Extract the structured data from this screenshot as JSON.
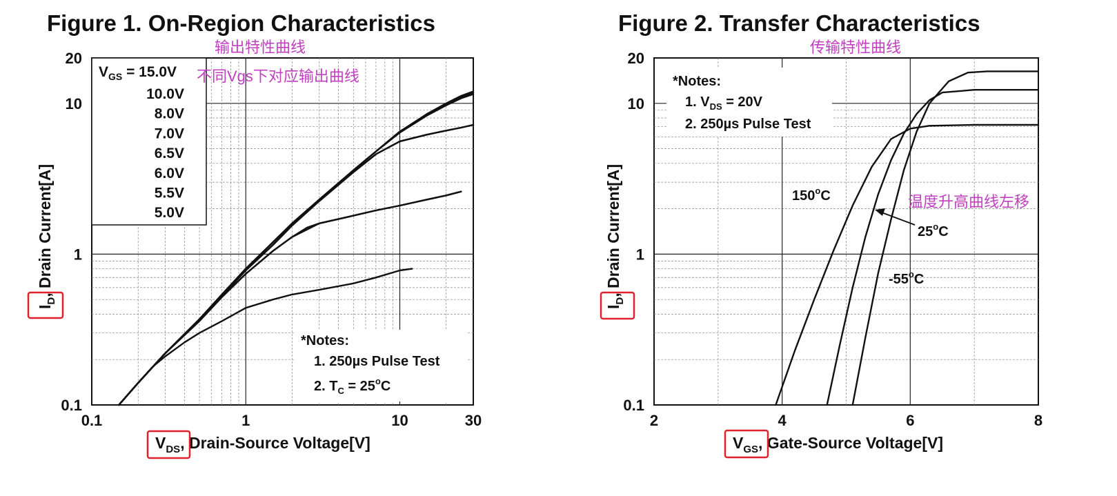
{
  "chart_data": [
    {
      "type": "line",
      "title": "Figure 1. On-Region Characteristics",
      "annotation_cn_title": "输出特性曲线",
      "annotation_cn_legend": "不同Vgs下对应输出曲线",
      "xlabel_sym": "V",
      "xlabel_sub": "DS",
      "xlabel_rest": ", Drain-Source Voltage[V]",
      "ylabel_sym": "I",
      "ylabel_sub": "D",
      "ylabel_rest": ", Drain Current[A]",
      "xscale": "log",
      "yscale": "log",
      "xlim": [
        0.1,
        30
      ],
      "ylim": [
        0.1,
        20
      ],
      "xticks": [
        {
          "v": 0.1,
          "label": "0.1"
        },
        {
          "v": 1,
          "label": "1"
        },
        {
          "v": 10,
          "label": "10"
        },
        {
          "v": 30,
          "label": "30"
        }
      ],
      "yticks": [
        {
          "v": 0.1,
          "label": "0.1"
        },
        {
          "v": 1,
          "label": "1"
        },
        {
          "v": 10,
          "label": "10"
        },
        {
          "v": 20,
          "label": "20"
        }
      ],
      "grid": true,
      "legend": {
        "placement": "top-left",
        "first_sym": "V",
        "first_sub": "GS",
        "first_value": " = 15.0V",
        "entries": [
          "10.0V",
          "8.0V",
          "7.0V",
          "6.5V",
          "6.0V",
          "5.5V",
          "5.0V"
        ]
      },
      "notes": {
        "heading": "*Notes:",
        "line1": "1. 250µs Pulse Test",
        "line2_pre": "2. T",
        "line2_sub": "C",
        "line2_mid": " = 25",
        "line2_sup": "o",
        "line2_post": "C"
      },
      "series": [
        {
          "name": "15.0V",
          "x": [
            0.15,
            0.2,
            0.3,
            0.5,
            0.7,
            1,
            1.5,
            2,
            3,
            5,
            7,
            10,
            15,
            20,
            25,
            30
          ],
          "y": [
            0.1,
            0.14,
            0.22,
            0.37,
            0.54,
            0.8,
            1.2,
            1.6,
            2.3,
            3.6,
            4.8,
            6.5,
            8.5,
            10,
            11.2,
            12
          ]
        },
        {
          "name": "10.0V",
          "x": [
            0.15,
            0.2,
            0.3,
            0.5,
            0.7,
            1,
            1.5,
            2,
            3,
            5,
            7,
            10,
            15,
            20,
            25,
            30
          ],
          "y": [
            0.1,
            0.14,
            0.22,
            0.37,
            0.54,
            0.8,
            1.2,
            1.6,
            2.3,
            3.6,
            4.8,
            6.5,
            8.4,
            9.9,
            11,
            11.8
          ]
        },
        {
          "name": "8.0V",
          "x": [
            0.15,
            0.2,
            0.3,
            0.5,
            0.7,
            1,
            1.5,
            2,
            3,
            5,
            7,
            10,
            15,
            20,
            25,
            30
          ],
          "y": [
            0.1,
            0.14,
            0.22,
            0.37,
            0.54,
            0.8,
            1.2,
            1.6,
            2.3,
            3.6,
            4.8,
            6.4,
            8.3,
            9.7,
            10.8,
            11.5
          ]
        },
        {
          "name": "7.0V",
          "x": [
            0.15,
            0.2,
            0.3,
            0.5,
            0.7,
            1,
            1.5,
            2,
            3,
            5,
            7,
            10,
            15,
            20,
            25,
            30
          ],
          "y": [
            0.1,
            0.14,
            0.22,
            0.37,
            0.53,
            0.78,
            1.15,
            1.55,
            2.25,
            3.5,
            4.6,
            5.6,
            6.2,
            6.6,
            6.9,
            7.2
          ]
        },
        {
          "name": "6.5V",
          "x": [
            0.15,
            0.2,
            0.3,
            0.5,
            0.7,
            1,
            1.5,
            2,
            3,
            5,
            7,
            10,
            15,
            20,
            25,
            30
          ],
          "y": [
            0.1,
            0.14,
            0.22,
            0.37,
            0.53,
            0.78,
            1.15,
            1.55,
            2.25,
            3.5,
            4.6,
            5.6,
            6.2,
            6.6,
            6.9,
            7.2
          ]
        },
        {
          "name": "6.0V",
          "x": [
            0.15,
            0.2,
            0.3,
            0.5,
            0.7,
            1,
            1.5,
            2,
            2.5,
            3,
            5,
            7,
            10,
            15,
            20,
            25
          ],
          "y": [
            0.1,
            0.14,
            0.22,
            0.36,
            0.52,
            0.74,
            1.05,
            1.3,
            1.5,
            1.6,
            1.8,
            1.95,
            2.1,
            2.3,
            2.45,
            2.6
          ]
        },
        {
          "name": "5.5V",
          "x": [
            0.15,
            0.2,
            0.3,
            0.5,
            0.7,
            1,
            1.5,
            2,
            3,
            5,
            7,
            10,
            15,
            20,
            25
          ],
          "y": [
            0.1,
            0.14,
            0.22,
            0.36,
            0.52,
            0.74,
            1.05,
            1.3,
            1.6,
            1.8,
            1.95,
            2.1,
            2.3,
            2.45,
            2.6
          ]
        },
        {
          "name": "5.0V",
          "x": [
            0.15,
            0.2,
            0.25,
            0.3,
            0.4,
            0.5,
            0.7,
            1,
            1.5,
            2,
            3,
            5,
            7,
            10,
            12
          ],
          "y": [
            0.1,
            0.14,
            0.18,
            0.21,
            0.26,
            0.3,
            0.36,
            0.44,
            0.5,
            0.54,
            0.58,
            0.64,
            0.7,
            0.78,
            0.8
          ]
        }
      ]
    },
    {
      "type": "line",
      "title": "Figure 2. Transfer Characteristics",
      "annotation_cn_title": "传输特性曲线",
      "annotation_cn_shift": "温度升高曲线左移",
      "xlabel_sym": "V",
      "xlabel_sub": "GS",
      "xlabel_rest": ", Gate-Source Voltage[V]",
      "ylabel_sym": "I",
      "ylabel_sub": "D",
      "ylabel_rest": ", Drain Current[A]",
      "xscale": "linear",
      "yscale": "log",
      "xlim": [
        2,
        8
      ],
      "ylim": [
        0.1,
        20
      ],
      "xticks": [
        {
          "v": 2,
          "label": "2"
        },
        {
          "v": 4,
          "label": "4"
        },
        {
          "v": 6,
          "label": "6"
        },
        {
          "v": 8,
          "label": "8"
        }
      ],
      "yticks": [
        {
          "v": 0.1,
          "label": "0.1"
        },
        {
          "v": 1,
          "label": "1"
        },
        {
          "v": 10,
          "label": "10"
        },
        {
          "v": 20,
          "label": "20"
        }
      ],
      "grid": true,
      "notes": {
        "heading": "*Notes:",
        "line1_pre": "1. V",
        "line1_sub": "DS",
        "line1_post": " = 20V",
        "line2": "2. 250µs Pulse Test"
      },
      "curve_labels": [
        {
          "num": "150",
          "sup": "o",
          "unit": "C"
        },
        {
          "num": "25",
          "sup": "o",
          "unit": "C"
        },
        {
          "num": "-55",
          "sup": "o",
          "unit": "C"
        }
      ],
      "series": [
        {
          "name": "150°C",
          "x": [
            3.9,
            4.2,
            4.5,
            4.8,
            5.1,
            5.4,
            5.7,
            6,
            6.3,
            7,
            8
          ],
          "y": [
            0.1,
            0.23,
            0.5,
            1.05,
            2.1,
            3.8,
            5.8,
            6.8,
            7.1,
            7.2,
            7.2
          ]
        },
        {
          "name": "25°C",
          "x": [
            4.7,
            4.9,
            5.1,
            5.3,
            5.5,
            5.7,
            5.9,
            6.1,
            6.3,
            6.5,
            7,
            8
          ],
          "y": [
            0.1,
            0.25,
            0.6,
            1.3,
            2.5,
            4.2,
            6.3,
            8.5,
            10.5,
            11.8,
            12.3,
            12.3
          ]
        },
        {
          "name": "-55°C",
          "x": [
            5.1,
            5.3,
            5.5,
            5.7,
            5.9,
            6.1,
            6.3,
            6.6,
            6.9,
            7.2,
            8
          ],
          "y": [
            0.1,
            0.28,
            0.75,
            1.7,
            3.6,
            6.5,
            10,
            14,
            16,
            16.3,
            16.3
          ]
        }
      ]
    }
  ]
}
